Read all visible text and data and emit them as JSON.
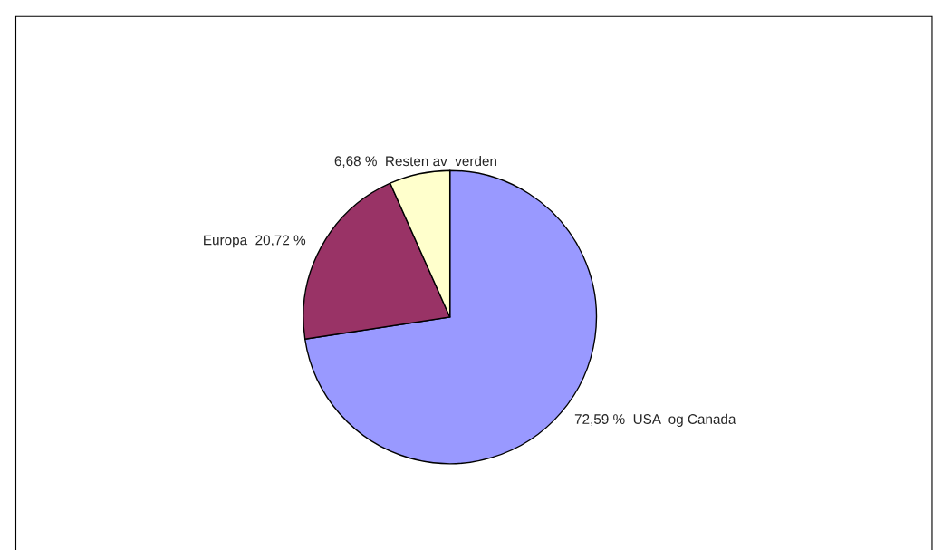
{
  "chart_data": {
    "type": "pie",
    "categories": [
      "USA  og Canada",
      "Europa",
      "Resten av  verden"
    ],
    "values": [
      72.59,
      20.72,
      6.68
    ],
    "value_labels": [
      "72,59 %",
      "20,72 %",
      "6,68 %"
    ],
    "colors": [
      "#9999ff",
      "#993366",
      "#ffffcc"
    ]
  }
}
